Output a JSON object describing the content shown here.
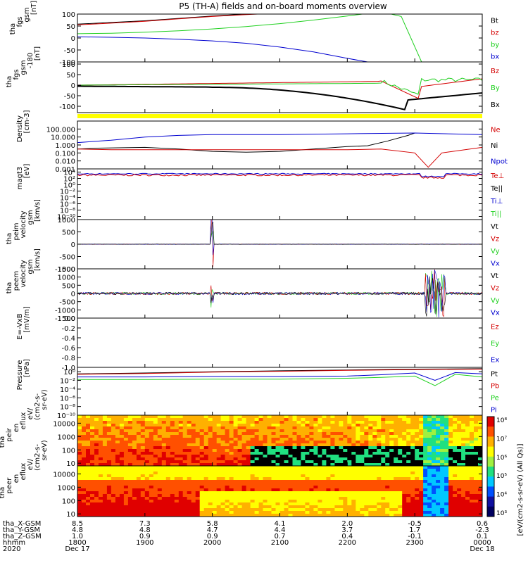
{
  "title": "P5 (TH-A) fields and on-board moments overview",
  "colors": {
    "black": "#000000",
    "red": "#d40000",
    "green": "#20d020",
    "blue": "#0000d0",
    "yellow": "#ffff00"
  },
  "panels": [
    {
      "key": "fgs",
      "ylabel": [
        "tha",
        "fgs",
        "gsm",
        "[nT]"
      ],
      "ticks": [
        "100",
        "50",
        "0",
        "-50",
        "-100"
      ],
      "ticks_y": [
        100,
        50,
        0,
        -50,
        -100
      ],
      "ylim": [
        -100,
        100
      ],
      "legend": [
        {
          "text": "Bt",
          "color": "black"
        },
        {
          "text": "bz",
          "color": "red"
        },
        {
          "text": "by",
          "color": "green"
        },
        {
          "text": "bx",
          "color": "blue"
        }
      ]
    },
    {
      "key": "fgs2",
      "ylabel": [
        "tha",
        "fgs",
        "gsm",
        "-180",
        "[nT]"
      ],
      "ticks": [
        "100",
        "50",
        "0",
        "-50",
        "-100"
      ],
      "ticks_y": [
        100,
        50,
        0,
        -50,
        -100
      ],
      "ylim": [
        -130,
        110
      ],
      "legend": [
        {
          "text": "Bz",
          "color": "red"
        },
        {
          "text": "By",
          "color": "green"
        },
        {
          "text": "Bx",
          "color": "black"
        }
      ]
    },
    {
      "key": "density",
      "ylabel": [
        "Density",
        "[cm-3]"
      ],
      "ticks": [
        "100.000",
        "10.000",
        "1.000",
        "0.100",
        "0.010",
        "0.001"
      ],
      "ticks_y": [
        2,
        1,
        0,
        -1,
        -2,
        -3
      ],
      "ylim": [
        -3,
        3
      ],
      "legend": [
        {
          "text": "Ne",
          "color": "red"
        },
        {
          "text": "Ni",
          "color": "black"
        },
        {
          "text": "Npot",
          "color": "blue"
        }
      ]
    },
    {
      "key": "temp",
      "ylabel": [
        "magt3",
        "[eV]"
      ],
      "ticks": [
        "10⁴",
        "10²",
        "10⁰",
        "10⁻²",
        "10⁻⁴",
        "10⁻⁶",
        "10⁻⁸",
        "10⁻¹⁰"
      ],
      "ticks_y": [
        4,
        2,
        0,
        -2,
        -4,
        -6,
        -8,
        -10
      ],
      "ylim": [
        -11,
        5
      ],
      "legend": [
        {
          "text": "Te⊥",
          "color": "red"
        },
        {
          "text": "Te||",
          "color": "black"
        },
        {
          "text": "Ti⊥",
          "color": "blue"
        },
        {
          "text": "Ti||",
          "color": "green"
        }
      ]
    },
    {
      "key": "peim",
      "ylabel": [
        "tha",
        "peim",
        "velocity",
        "gsm",
        "[km/s]"
      ],
      "ticks": [
        "1000",
        "500",
        "0",
        "-500",
        "-1000"
      ],
      "ticks_y": [
        1000,
        500,
        0,
        -500,
        -1000
      ],
      "ylim": [
        -1000,
        1000
      ],
      "legend": [
        {
          "text": "Vt",
          "color": "black"
        },
        {
          "text": "Vz",
          "color": "red"
        },
        {
          "text": "Vy",
          "color": "green"
        },
        {
          "text": "Vx",
          "color": "blue"
        }
      ]
    },
    {
      "key": "peem",
      "ylabel": [
        "tha",
        "peem",
        "velocity",
        "gsm",
        "[km/s]"
      ],
      "ticks": [
        "1500",
        "1000",
        "500",
        "0",
        "-500",
        "-1000",
        "-1500"
      ],
      "ticks_y": [
        1500,
        1000,
        500,
        0,
        -500,
        -1000,
        -1500
      ],
      "ylim": [
        -1500,
        1500
      ],
      "legend": [
        {
          "text": "Vt",
          "color": "black"
        },
        {
          "text": "Vz",
          "color": "red"
        },
        {
          "text": "Vy",
          "color": "green"
        },
        {
          "text": "Vx",
          "color": "blue"
        }
      ]
    },
    {
      "key": "efield",
      "ylabel": [
        "E=-VxB",
        "[mV/m]"
      ],
      "ticks": [
        "0.0",
        "-0.2",
        "-0.4",
        "-0.6",
        "-0.8",
        "-1.0"
      ],
      "ticks_y": [
        0,
        -0.2,
        -0.4,
        -0.6,
        -0.8,
        -1.0
      ],
      "ylim": [
        -1,
        0
      ],
      "legend": [
        {
          "text": "Ez",
          "color": "red"
        },
        {
          "text": "Ey",
          "color": "green"
        },
        {
          "text": "Ex",
          "color": "blue"
        }
      ]
    },
    {
      "key": "pressure",
      "ylabel": [
        "Pressure",
        "[nPa]"
      ],
      "ticks": [
        "10⁰",
        "10⁻²",
        "10⁻⁴",
        "10⁻⁶",
        "10⁻⁸",
        "10⁻¹⁰"
      ],
      "ticks_y": [
        0,
        -2,
        -4,
        -6,
        -8,
        -10
      ],
      "ylim": [
        -10,
        1
      ],
      "legend": [
        {
          "text": "Pt",
          "color": "black"
        },
        {
          "text": "Pb",
          "color": "red"
        },
        {
          "text": "Pe",
          "color": "green"
        },
        {
          "text": "Pi",
          "color": "blue"
        }
      ]
    },
    {
      "key": "peir",
      "ylabel": [
        "tha",
        "peir",
        "en",
        "eflux",
        "eV/",
        "(cm2-s-",
        "sr-eV)"
      ],
      "ticks": [
        "10000",
        "1000",
        "100",
        "10"
      ],
      "ticks_y": [
        4,
        3,
        2,
        1
      ],
      "ylim": [
        0.8,
        4.6
      ]
    },
    {
      "key": "peer",
      "ylabel": [
        "tha",
        "peer",
        "en",
        "eflux",
        "eV/",
        "(cm2-s-",
        "sr-eV)"
      ],
      "ticks": [
        "10000",
        "1000",
        "100",
        "10"
      ],
      "ticks_y": [
        4,
        3,
        2,
        1
      ],
      "ylim": [
        0.8,
        4.6
      ]
    }
  ],
  "colorbar": {
    "ticks": [
      "10⁸",
      "10⁷",
      "10⁶",
      "10⁵",
      "10⁴",
      "10³"
    ],
    "label": "[eV/(cm2-s-sr-eV) (All Qs)]"
  },
  "xaxis": {
    "rows": [
      {
        "label": "tha_X-GSM",
        "values": [
          "8.5",
          "7.3",
          "5.8",
          "4.1",
          "2.0",
          "-0.5",
          "0.6"
        ]
      },
      {
        "label": "tha_Y-GSM",
        "values": [
          "4.8",
          "4.8",
          "4.7",
          "4.4",
          "3.7",
          "1.7",
          "-2.3"
        ]
      },
      {
        "label": "tha_Z-GSM",
        "values": [
          "1.0",
          "0.9",
          "0.9",
          "0.7",
          "0.4",
          "-0.1",
          "0.1"
        ]
      },
      {
        "label": "hhmm",
        "values": [
          "1800",
          "1900",
          "2000",
          "2100",
          "2200",
          "2300",
          "0000"
        ]
      },
      {
        "label": "2020",
        "values": [
          "Dec 17",
          "",
          "",
          "",
          "",
          "",
          "Dec 18"
        ]
      }
    ]
  },
  "chart_data": {
    "type": "line",
    "title": "P5 (TH-A) fields and on-board moments overview",
    "x_hours": [
      18,
      19,
      20,
      21,
      22,
      23,
      24
    ],
    "series_fgs": [
      {
        "name": "Bt",
        "x": [
          18.0,
          18.5,
          19.0,
          19.5,
          20.0,
          20.5,
          21.0
        ],
        "y": [
          58,
          65,
          72,
          82,
          92,
          100,
          105
        ]
      },
      {
        "name": "bz",
        "x": [
          18.0,
          18.5,
          19.0,
          19.5,
          20.0,
          20.5,
          21.0
        ],
        "y": [
          55,
          62,
          70,
          80,
          90,
          98,
          104
        ]
      },
      {
        "name": "by",
        "x": [
          18.0,
          18.5,
          19.0,
          19.5,
          20.0,
          20.5,
          21.0,
          21.5,
          22.0,
          22.5,
          22.8,
          23.1
        ],
        "y": [
          18,
          20,
          24,
          30,
          38,
          48,
          60,
          75,
          92,
          110,
          90,
          -100
        ]
      },
      {
        "name": "bx",
        "x": [
          18.0,
          18.5,
          19.0,
          19.5,
          20.0,
          20.5,
          21.0,
          21.5,
          22.0,
          22.3
        ],
        "y": [
          5,
          3,
          0,
          -5,
          -12,
          -22,
          -38,
          -58,
          -85,
          -100
        ]
      }
    ],
    "series_density": [
      {
        "name": "Ni",
        "x": [
          18.0,
          18.3,
          19.0,
          19.5,
          20.0,
          20.5,
          21.0,
          21.5,
          22.0,
          22.3,
          22.6,
          22.9,
          23.0
        ],
        "y": [
          -0.5,
          -0.4,
          -0.3,
          -0.5,
          -0.8,
          -0.9,
          -0.8,
          -0.5,
          -0.2,
          -0.1,
          0.5,
          1.2,
          1.5
        ]
      },
      {
        "name": "Npot",
        "x": [
          18.0,
          18.5,
          19.0,
          19.5,
          20.0,
          21.0,
          22.0,
          23.0,
          24.0
        ],
        "y": [
          0.3,
          0.6,
          1.0,
          1.2,
          1.3,
          1.3,
          1.4,
          1.5,
          1.3
        ]
      },
      {
        "name": "Ne",
        "x": [
          18.0,
          18.5,
          19.0,
          20.0,
          21.0,
          22.0,
          22.5,
          23.0,
          23.2,
          23.4,
          24.0
        ],
        "y": [
          -0.5,
          -0.6,
          -0.6,
          -0.6,
          -0.6,
          -0.6,
          -0.5,
          -1.0,
          -2.8,
          -1.0,
          -0.3
        ]
      }
    ],
    "series_pressure": [
      {
        "name": "Pt",
        "x": [
          18.0,
          19.0,
          20.0,
          21.0,
          22.0,
          23.0,
          24.0
        ],
        "y": [
          -0.5,
          -0.3,
          0.0,
          0.2,
          0.4,
          0.6,
          0.7
        ]
      },
      {
        "name": "Pb",
        "x": [
          18.0,
          19.0,
          20.0,
          21.0,
          22.0,
          23.0,
          24.0
        ],
        "y": [
          -0.6,
          -0.4,
          -0.1,
          0.1,
          0.3,
          0.5,
          0.6
        ]
      },
      {
        "name": "Pi",
        "x": [
          18.0,
          19.0,
          20.0,
          21.0,
          22.0,
          22.5,
          23.0,
          23.3,
          23.6,
          24.0
        ],
        "y": [
          -1.2,
          -1.2,
          -1.1,
          -1.1,
          -1.0,
          -0.7,
          -0.3,
          -2.0,
          -0.2,
          -0.5
        ]
      },
      {
        "name": "Pe",
        "x": [
          18.0,
          19.0,
          20.0,
          21.0,
          22.0,
          22.5,
          23.0,
          23.3,
          23.6,
          24.0
        ],
        "y": [
          -1.8,
          -1.8,
          -1.7,
          -1.7,
          -1.5,
          -1.3,
          -1.0,
          -3.2,
          -0.6,
          -1.2
        ]
      }
    ]
  }
}
